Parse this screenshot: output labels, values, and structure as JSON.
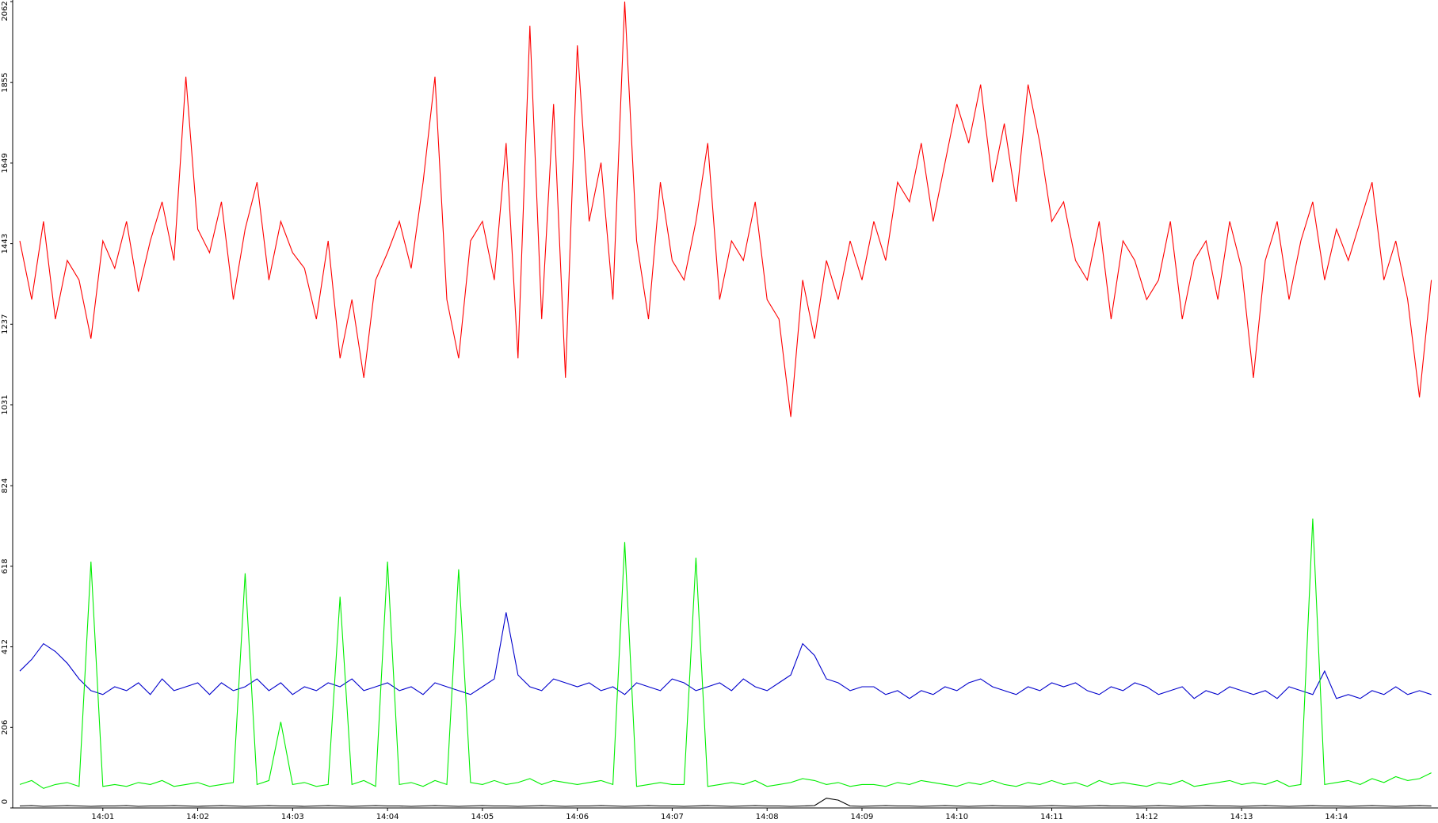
{
  "chart_data": {
    "type": "line",
    "x": [
      0.125,
      0.25,
      0.375,
      0.5,
      0.625,
      0.75,
      0.875,
      1.0,
      1.125,
      1.25,
      1.375,
      1.5,
      1.625,
      1.75,
      1.875,
      2.0,
      2.125,
      2.25,
      2.375,
      2.5,
      2.625,
      2.75,
      2.875,
      3.0,
      3.125,
      3.25,
      3.375,
      3.5,
      3.625,
      3.75,
      3.875,
      4.0,
      4.125,
      4.25,
      4.375,
      4.5,
      4.625,
      4.75,
      4.875,
      5.0,
      5.125,
      5.25,
      5.375,
      5.5,
      5.625,
      5.75,
      5.875,
      6.0,
      6.125,
      6.25,
      6.375,
      6.5,
      6.625,
      6.75,
      6.875,
      7.0,
      7.125,
      7.25,
      7.375,
      7.5,
      7.625,
      7.75,
      7.875,
      8.0,
      8.125,
      8.25,
      8.375,
      8.5,
      8.625,
      8.75,
      8.875,
      9.0,
      9.125,
      9.25,
      9.375,
      9.5,
      9.625,
      9.75,
      9.875,
      10.0,
      10.125,
      10.25,
      10.375,
      10.5,
      10.625,
      10.75,
      10.875,
      11.0,
      11.125,
      11.25,
      11.375,
      11.5,
      11.625,
      11.75,
      11.875,
      12.0,
      12.125,
      12.25,
      12.375,
      12.5,
      12.625,
      12.75,
      12.875,
      13.0,
      13.125,
      13.25,
      13.375,
      13.5,
      13.625,
      13.75,
      13.875,
      14.0,
      14.125,
      14.25,
      14.375,
      14.5,
      14.625,
      14.75,
      14.875,
      15.0
    ],
    "series": [
      {
        "color": "#ff0000",
        "values": [
          1450,
          1300,
          1500,
          1250,
          1400,
          1350,
          1200,
          1450,
          1380,
          1500,
          1320,
          1450,
          1550,
          1400,
          1870,
          1480,
          1420,
          1550,
          1300,
          1480,
          1600,
          1350,
          1500,
          1420,
          1380,
          1250,
          1450,
          1150,
          1300,
          1100,
          1350,
          1420,
          1500,
          1380,
          1600,
          1870,
          1300,
          1150,
          1450,
          1500,
          1350,
          1700,
          1150,
          2000,
          1250,
          1800,
          1100,
          1950,
          1500,
          1650,
          1300,
          2062,
          1450,
          1250,
          1600,
          1400,
          1350,
          1500,
          1700,
          1300,
          1450,
          1400,
          1550,
          1300,
          1250,
          1000,
          1350,
          1200,
          1400,
          1300,
          1450,
          1350,
          1500,
          1400,
          1600,
          1550,
          1700,
          1500,
          1650,
          1800,
          1700,
          1850,
          1600,
          1750,
          1550,
          1850,
          1700,
          1500,
          1550,
          1400,
          1350,
          1500,
          1250,
          1450,
          1400,
          1300,
          1350,
          1500,
          1250,
          1400,
          1450,
          1300,
          1500,
          1380,
          1100,
          1400,
          1500,
          1300,
          1450,
          1550,
          1350,
          1480,
          1400,
          1500,
          1600,
          1350,
          1450,
          1300,
          1050,
          1350
        ]
      },
      {
        "color": "#0000cc",
        "values": [
          350,
          380,
          420,
          400,
          370,
          330,
          300,
          290,
          310,
          300,
          320,
          290,
          330,
          300,
          310,
          320,
          290,
          320,
          300,
          310,
          330,
          300,
          320,
          290,
          310,
          300,
          320,
          310,
          330,
          300,
          310,
          320,
          300,
          310,
          290,
          320,
          310,
          300,
          290,
          310,
          330,
          500,
          340,
          310,
          300,
          330,
          320,
          310,
          320,
          300,
          310,
          290,
          320,
          310,
          300,
          330,
          320,
          300,
          310,
          320,
          300,
          330,
          310,
          300,
          320,
          340,
          420,
          390,
          330,
          320,
          300,
          310,
          310,
          290,
          300,
          280,
          300,
          290,
          310,
          300,
          320,
          330,
          310,
          300,
          290,
          310,
          300,
          320,
          310,
          320,
          300,
          290,
          310,
          300,
          320,
          310,
          290,
          300,
          310,
          280,
          300,
          290,
          310,
          300,
          290,
          300,
          280,
          310,
          300,
          290,
          350,
          280,
          290,
          280,
          300,
          290,
          310,
          290,
          300,
          290
        ]
      },
      {
        "color": "#00ee00",
        "values": [
          60,
          70,
          50,
          60,
          65,
          55,
          630,
          55,
          60,
          55,
          65,
          60,
          70,
          55,
          60,
          65,
          55,
          60,
          65,
          600,
          60,
          70,
          220,
          60,
          65,
          55,
          60,
          540,
          60,
          70,
          55,
          630,
          60,
          65,
          55,
          70,
          60,
          610,
          65,
          60,
          70,
          60,
          65,
          75,
          60,
          70,
          65,
          60,
          65,
          70,
          60,
          680,
          55,
          60,
          65,
          60,
          60,
          640,
          55,
          60,
          65,
          60,
          70,
          55,
          60,
          65,
          75,
          70,
          60,
          65,
          55,
          60,
          60,
          55,
          65,
          60,
          70,
          65,
          60,
          55,
          65,
          60,
          70,
          60,
          55,
          65,
          60,
          70,
          60,
          65,
          55,
          70,
          60,
          65,
          60,
          55,
          65,
          60,
          70,
          55,
          60,
          65,
          70,
          60,
          65,
          60,
          70,
          55,
          60,
          740,
          60,
          65,
          70,
          60,
          75,
          65,
          80,
          70,
          75,
          90
        ]
      },
      {
        "color": "#000000",
        "values": [
          5,
          6,
          4,
          5,
          6,
          5,
          4,
          5,
          5,
          6,
          4,
          5,
          5,
          6,
          5,
          4,
          5,
          6,
          5,
          4,
          5,
          6,
          5,
          5,
          4,
          5,
          6,
          5,
          4,
          5,
          6,
          5,
          5,
          4,
          5,
          6,
          5,
          4,
          5,
          6,
          5,
          5,
          4,
          5,
          6,
          5,
          4,
          5,
          5,
          6,
          5,
          4,
          5,
          6,
          5,
          5,
          4,
          5,
          6,
          5,
          4,
          5,
          6,
          5,
          5,
          4,
          5,
          6,
          25,
          20,
          5,
          4,
          5,
          6,
          5,
          5,
          4,
          5,
          6,
          5,
          4,
          5,
          6,
          5,
          5,
          4,
          5,
          6,
          5,
          4,
          5,
          6,
          5,
          5,
          4,
          5,
          6,
          5,
          4,
          5,
          6,
          5,
          5,
          4,
          5,
          6,
          5,
          4,
          5,
          6,
          5,
          5,
          4,
          5,
          6,
          5,
          4,
          5,
          6,
          5
        ]
      }
    ],
    "xlim": [
      0.05,
      15.07
    ],
    "xticks": [
      {
        "value": 1,
        "label": "14:01"
      },
      {
        "value": 2,
        "label": "14:02"
      },
      {
        "value": 3,
        "label": "14:03"
      },
      {
        "value": 4,
        "label": "14:04"
      },
      {
        "value": 5,
        "label": "14:05"
      },
      {
        "value": 6,
        "label": "14:06"
      },
      {
        "value": 7,
        "label": "14:07"
      },
      {
        "value": 8,
        "label": "14:08"
      },
      {
        "value": 9,
        "label": "14:09"
      },
      {
        "value": 10,
        "label": "14:10"
      },
      {
        "value": 11,
        "label": "14:11"
      },
      {
        "value": 12,
        "label": "14:12"
      },
      {
        "value": 13,
        "label": "14:13"
      },
      {
        "value": 14,
        "label": "14:14"
      }
    ],
    "ylim": [
      0,
      2062
    ],
    "yticks": [
      0,
      206,
      412,
      618,
      824,
      1031,
      1237,
      1443,
      1649,
      1855,
      2062
    ],
    "grid": false
  }
}
